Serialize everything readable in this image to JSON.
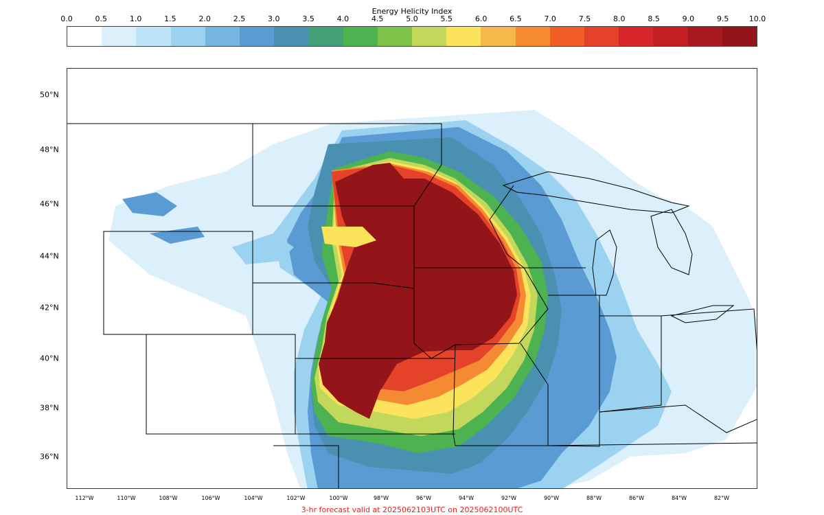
{
  "colorbar": {
    "title": "Energy Helicity Index",
    "ticks": [
      "0.0",
      "0.5",
      "1.0",
      "1.5",
      "2.0",
      "2.5",
      "3.0",
      "3.5",
      "4.0",
      "4.5",
      "5.0",
      "5.5",
      "6.0",
      "6.5",
      "7.0",
      "7.5",
      "8.0",
      "8.5",
      "9.0",
      "9.5",
      "10.0"
    ],
    "colors": [
      "#ffffff",
      "#dcf0fb",
      "#bde5f7",
      "#9ad2f0",
      "#76b5e0",
      "#5a9bd3",
      "#4a90b0",
      "#45a07a",
      "#4db350",
      "#7fc24a",
      "#c2d85a",
      "#fbe45c",
      "#f7b84b",
      "#f68a33",
      "#f05e25",
      "#e4432a",
      "#d6262a",
      "#c31e24",
      "#a81a20",
      "#931519"
    ]
  },
  "map": {
    "lat_labels": [
      "50°N",
      "48°N",
      "46°N",
      "44°N",
      "42°N",
      "40°N",
      "38°N",
      "36°N"
    ],
    "lon_labels": [
      "112°W",
      "110°W",
      "108°W",
      "106°W",
      "104°W",
      "102°W",
      "100°W",
      "98°W",
      "96°W",
      "94°W",
      "92°W",
      "90°W",
      "88°W",
      "86°W",
      "84°W",
      "82°W"
    ],
    "field_colors": {
      "veryLight": "#dcf0fb",
      "light": "#9ad2f0",
      "medium": "#5a9bd3",
      "teal": "#4a90b0",
      "green": "#4db350",
      "lime": "#c2d85a",
      "yellow": "#fbe45c",
      "orange": "#f68a33",
      "red": "#e4432a",
      "darkRed": "#931519"
    }
  },
  "footer": "3-hr forecast valid at 2025062103UTC on 2025062100UTC"
}
